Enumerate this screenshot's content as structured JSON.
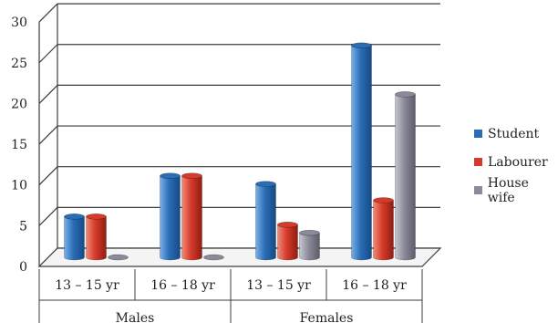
{
  "chart_data": {
    "type": "bar",
    "groups": [
      {
        "label": "Males",
        "categories": [
          "13 – 15 yr",
          "16 – 18 yr"
        ]
      },
      {
        "label": "Females",
        "categories": [
          "13 – 15 yr",
          "16 – 18 yr"
        ]
      }
    ],
    "categories": [
      "13 – 15 yr",
      "16 – 18 yr",
      "13 – 15 yr",
      "16 – 18 yr"
    ],
    "series": [
      {
        "name": "Student",
        "values": [
          5,
          10,
          9,
          26
        ],
        "color": "#2a6db5"
      },
      {
        "name": "Labourer",
        "values": [
          5,
          10,
          4,
          7
        ],
        "color": "#d63a2a"
      },
      {
        "name": "House wife",
        "values": [
          0,
          0,
          3,
          20
        ],
        "color": "#8a8a98"
      }
    ],
    "yticks": [
      0,
      5,
      10,
      15,
      20,
      25,
      30
    ],
    "ylim": [
      0,
      30
    ],
    "grid": true,
    "legend": "right"
  }
}
